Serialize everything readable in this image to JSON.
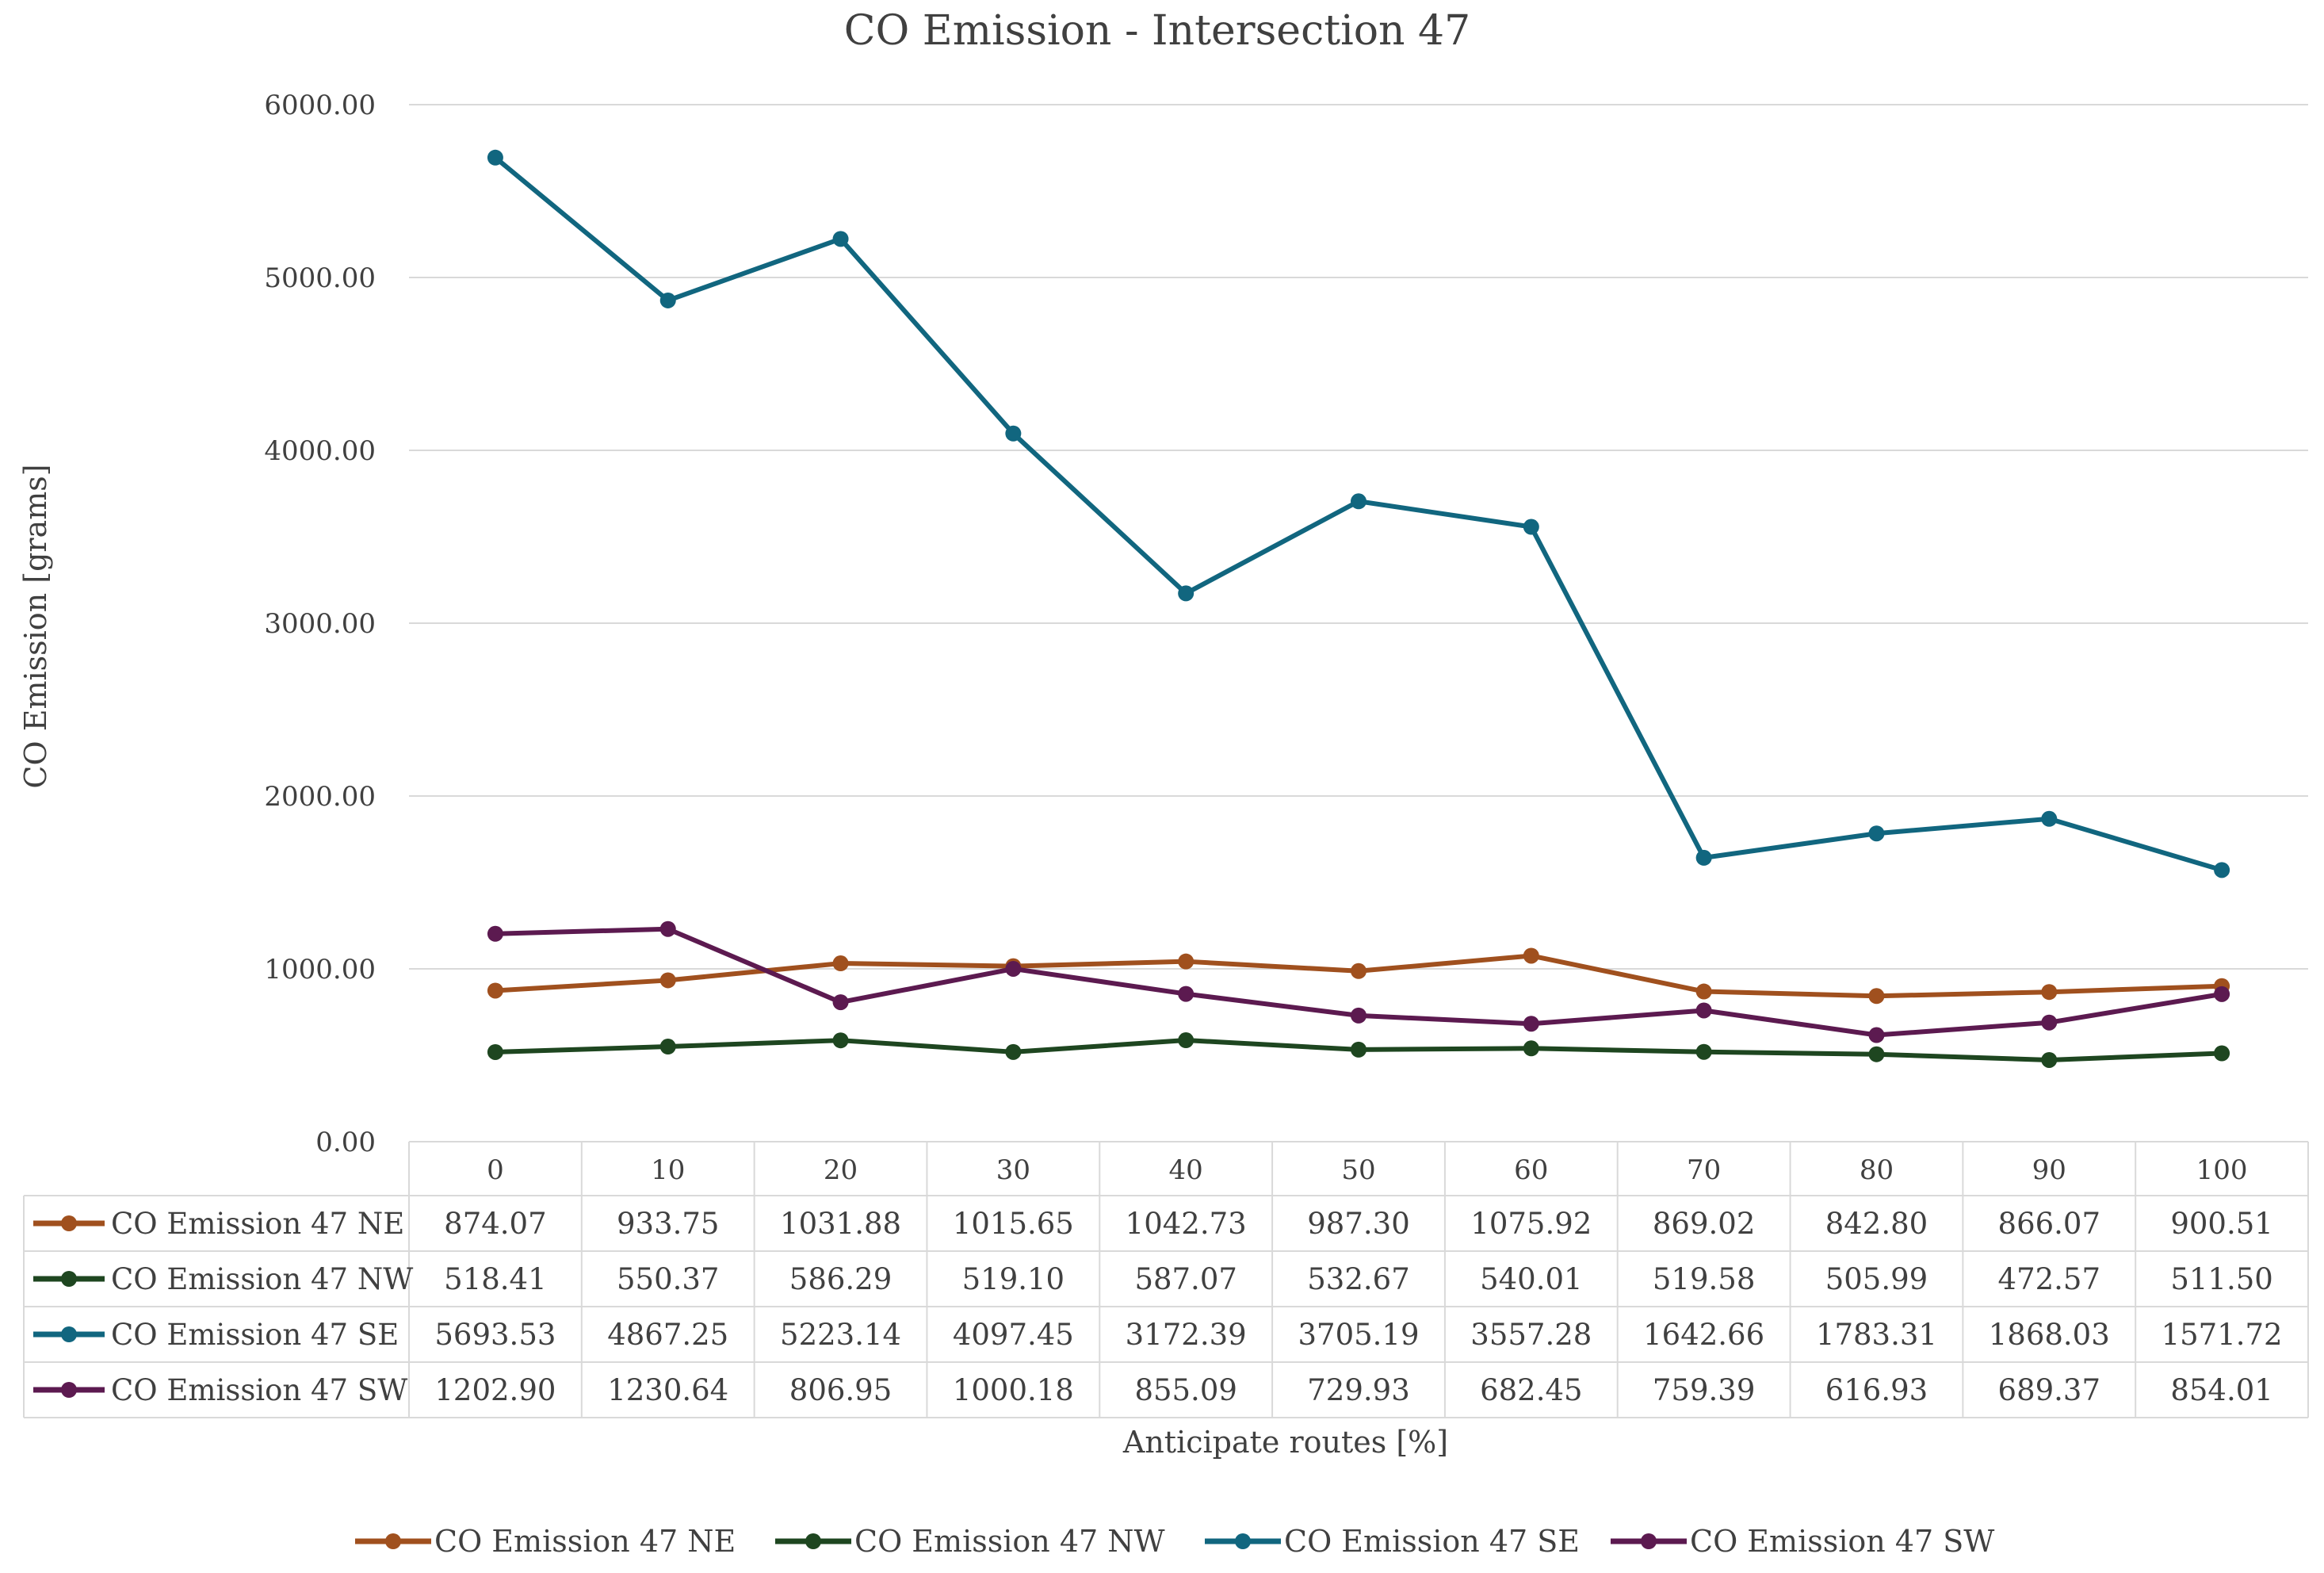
{
  "chart_data": {
    "type": "line",
    "title": "CO Emission - Intersection 47",
    "xlabel": "Anticipate routes [%]",
    "ylabel": "CO Emission [grams]",
    "ylim": [
      0,
      6000
    ],
    "y_ticks": [
      "0.00",
      "1000.00",
      "2000.00",
      "3000.00",
      "4000.00",
      "5000.00",
      "6000.00"
    ],
    "grid": true,
    "legend_position": "bottom",
    "data_table": true,
    "categories": [
      "0",
      "10",
      "20",
      "30",
      "40",
      "50",
      "60",
      "70",
      "80",
      "90",
      "100"
    ],
    "series": [
      {
        "name": "CO Emission 47 NE",
        "color": "#A0501E",
        "values": [
          874.07,
          933.75,
          1031.88,
          1015.65,
          1042.73,
          987.3,
          1075.92,
          869.02,
          842.8,
          866.07,
          900.51
        ],
        "labels": [
          "874.07",
          "933.75",
          "1031.88",
          "1015.65",
          "1042.73",
          "987.30",
          "1075.92",
          "869.02",
          "842.80",
          "866.07",
          "900.51"
        ]
      },
      {
        "name": "CO Emission 47 NW",
        "color": "#1E4620",
        "values": [
          518.41,
          550.37,
          586.29,
          519.1,
          587.07,
          532.67,
          540.01,
          519.58,
          505.99,
          472.57,
          511.5
        ],
        "labels": [
          "518.41",
          "550.37",
          "586.29",
          "519.10",
          "587.07",
          "532.67",
          "540.01",
          "519.58",
          "505.99",
          "472.57",
          "511.50"
        ]
      },
      {
        "name": "CO Emission 47 SE",
        "color": "#11667F",
        "values": [
          5693.53,
          4867.25,
          5223.14,
          4097.45,
          3172.39,
          3705.19,
          3557.28,
          1642.66,
          1783.31,
          1868.03,
          1571.72
        ],
        "labels": [
          "5693.53",
          "4867.25",
          "5223.14",
          "4097.45",
          "3172.39",
          "3705.19",
          "3557.28",
          "1642.66",
          "1783.31",
          "1868.03",
          "1571.72"
        ]
      },
      {
        "name": "CO Emission 47 SW",
        "color": "#5C1A50",
        "values": [
          1202.9,
          1230.64,
          806.95,
          1000.18,
          855.09,
          729.93,
          682.45,
          759.39,
          616.93,
          689.37,
          854.01
        ],
        "labels": [
          "1202.90",
          "1230.64",
          "806.95",
          "1000.18",
          "855.09",
          "729.93",
          "682.45",
          "759.39",
          "616.93",
          "689.37",
          "854.01"
        ]
      }
    ]
  }
}
